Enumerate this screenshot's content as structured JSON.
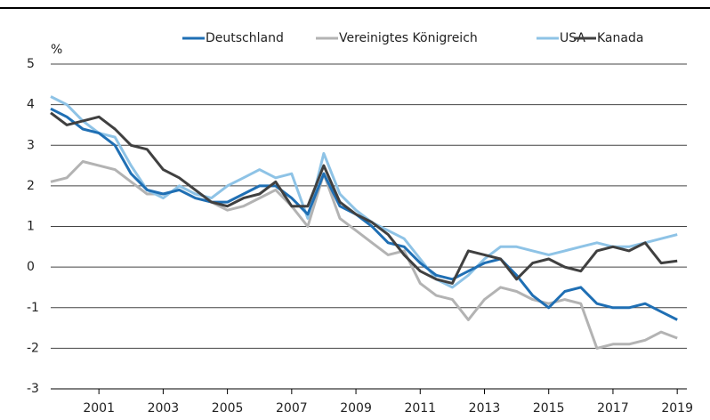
{
  "chart_data": {
    "type": "line",
    "y_label": "%",
    "x": [
      2000.0,
      2000.5,
      2001.0,
      2001.5,
      2002.0,
      2002.5,
      2003.0,
      2003.5,
      2004.0,
      2004.5,
      2005.0,
      2005.5,
      2006.0,
      2006.5,
      2007.0,
      2007.5,
      2008.0,
      2008.5,
      2009.0,
      2009.5,
      2010.0,
      2010.5,
      2011.0,
      2011.5,
      2012.0,
      2012.5,
      2013.0,
      2013.5,
      2014.0,
      2014.5,
      2015.0,
      2015.5,
      2016.0,
      2016.5,
      2017.0,
      2017.5,
      2018.0,
      2018.5,
      2019.0,
      2019.5
    ],
    "series": [
      {
        "name": "Deutschland",
        "color": "#1f6fb4",
        "values": [
          3.9,
          3.7,
          3.4,
          3.3,
          3.0,
          2.3,
          1.9,
          1.8,
          1.9,
          1.7,
          1.6,
          1.6,
          1.8,
          2.0,
          2.0,
          1.7,
          1.3,
          2.3,
          1.5,
          1.3,
          1.0,
          0.6,
          0.5,
          0.1,
          -0.2,
          -0.3,
          -0.1,
          0.1,
          0.2,
          -0.2,
          -0.7,
          -1.0,
          -0.6,
          -0.5,
          -0.9,
          -1.0,
          -1.0,
          -0.9,
          -1.1,
          -1.3
        ]
      },
      {
        "name": "Vereinigtes Königreich",
        "color": "#b3b3b3",
        "values": [
          2.1,
          2.2,
          2.6,
          2.5,
          2.4,
          2.1,
          1.8,
          1.8,
          1.9,
          1.7,
          1.6,
          1.4,
          1.5,
          1.7,
          1.9,
          1.5,
          1.0,
          2.3,
          1.2,
          0.9,
          0.6,
          0.3,
          0.4,
          -0.4,
          -0.7,
          -0.8,
          -1.3,
          -0.8,
          -0.5,
          -0.6,
          -0.8,
          -0.9,
          -0.8,
          -0.9,
          -2.0,
          -1.9,
          -1.9,
          -1.8,
          -1.6,
          -1.75
        ]
      },
      {
        "name": "USA",
        "color": "#8ec3e6",
        "values": [
          4.2,
          4.0,
          3.6,
          3.3,
          3.2,
          2.5,
          1.9,
          1.7,
          2.0,
          1.8,
          1.7,
          2.0,
          2.2,
          2.4,
          2.2,
          2.3,
          1.2,
          2.8,
          1.8,
          1.4,
          1.1,
          0.9,
          0.7,
          0.2,
          -0.3,
          -0.5,
          -0.2,
          0.2,
          0.5,
          0.5,
          0.4,
          0.3,
          0.4,
          0.5,
          0.6,
          0.5,
          0.5,
          0.6,
          0.7,
          0.8
        ]
      },
      {
        "name": "Kanada",
        "color": "#404040",
        "values": [
          3.8,
          3.5,
          3.6,
          3.7,
          3.4,
          3.0,
          2.9,
          2.4,
          2.2,
          1.9,
          1.6,
          1.5,
          1.7,
          1.8,
          2.1,
          1.5,
          1.5,
          2.5,
          1.6,
          1.3,
          1.1,
          0.8,
          0.3,
          -0.1,
          -0.3,
          -0.4,
          0.4,
          0.3,
          0.2,
          -0.3,
          0.1,
          0.2,
          0.0,
          -0.1,
          0.4,
          0.5,
          0.4,
          0.6,
          0.1,
          0.15
        ]
      }
    ],
    "draw_order": [
      1,
      2,
      0,
      3
    ],
    "xlim": [
      2000,
      2019.8
    ],
    "xticks": [
      {
        "value": 2001.5,
        "label": "2001"
      },
      {
        "value": 2003.5,
        "label": "2003"
      },
      {
        "value": 2005.5,
        "label": "2005"
      },
      {
        "value": 2007.5,
        "label": "2007"
      },
      {
        "value": 2009.5,
        "label": "2009"
      },
      {
        "value": 2011.5,
        "label": "2011"
      },
      {
        "value": 2013.5,
        "label": "2013"
      },
      {
        "value": 2015.5,
        "label": "2015"
      },
      {
        "value": 2017.5,
        "label": "2017"
      },
      {
        "value": 2019.5,
        "label": "2019"
      }
    ],
    "ylim": [
      -3,
      5
    ],
    "yticks": [
      -3,
      -2,
      -1,
      0,
      1,
      2,
      3,
      4,
      5
    ],
    "grid": true,
    "legend": "top"
  }
}
